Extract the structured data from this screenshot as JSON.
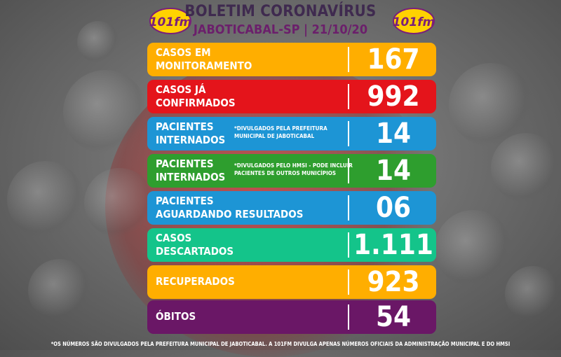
{
  "header": {
    "title": "BOLETIM CORONAVÍRUS",
    "subtitle": "JABOTICABAL-SP | 21/10/20",
    "logo_text": "101fm"
  },
  "colors": {
    "orange": "#FFAE00",
    "red": "#E4141B",
    "blue": "#1D95D5",
    "green": "#2E9E2E",
    "teal": "#14C48A",
    "purple": "#6A1766"
  },
  "rows": [
    {
      "label_line1": "CASOS EM",
      "label_line2": "MONITORAMENTO",
      "note": "",
      "value": "167",
      "color": "#FFAE00"
    },
    {
      "label_line1": "CASOS JÁ",
      "label_line2": "CONFIRMADOS",
      "note": "",
      "value": "992",
      "color": "#E4141B"
    },
    {
      "label_line1": "PACIENTES",
      "label_line2": "INTERNADOS",
      "note": "*DIVULGADOS PELA PREFEITURA MUNICIPAL DE JABOTICABAL",
      "value": "14",
      "color": "#1D95D5"
    },
    {
      "label_line1": "PACIENTES",
      "label_line2": "INTERNADOS",
      "note": "*DIVULGADOS PELO HMSI - PODE INCLUIR PACIENTES DE OUTROS MUNICÍPIOS",
      "value": "14",
      "color": "#2E9E2E"
    },
    {
      "label_line1": "PACIENTES",
      "label_line2": "AGUARDANDO RESULTADOS",
      "note": "",
      "value": "06",
      "color": "#1D95D5"
    },
    {
      "label_line1": "CASOS",
      "label_line2": "DESCARTADOS",
      "note": "",
      "value": "1.111",
      "color": "#14C48A"
    },
    {
      "label_line1": "RECUPERADOS",
      "label_line2": "",
      "note": "",
      "value": "923",
      "color": "#FFAE00"
    },
    {
      "label_line1": "ÓBITOS",
      "label_line2": "",
      "note": "",
      "value": "54",
      "color": "#6A1766"
    }
  ],
  "footer": "*OS NÚMEROS SÃO DIVULGADOS PELA PREFEITURA MUNICIPAL DE JABOTICABAL. A 101FM DIVULGA APENAS NÚMEROS OFICIAIS DA ADMINISTRAÇÃO MUNICIPAL E DO HMSI"
}
